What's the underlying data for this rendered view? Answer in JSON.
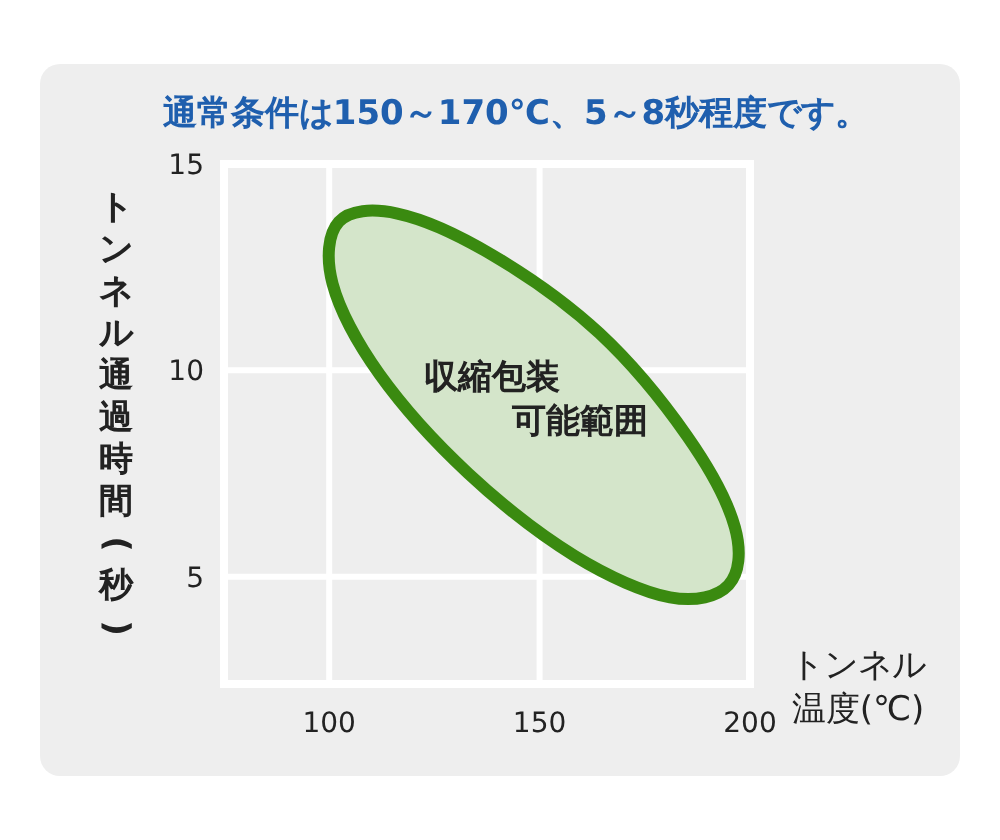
{
  "chart_data": {
    "type": "area",
    "title": "通常条件は150～170℃、5～8秒程度です。",
    "xlabel": "トンネル温度(℃)",
    "ylabel": "トンネル通過時間(秒)",
    "xlim": [
      75,
      200
    ],
    "ylim": [
      2.4,
      15
    ],
    "xticks": [
      100,
      150,
      200
    ],
    "yticks": [
      5,
      10,
      15
    ],
    "grid": true,
    "marker": "none",
    "line_style": "solid",
    "series": [
      {
        "color": "#3a8a10",
        "x": [
          194.9,
          181.0,
          158.4,
          133.1,
          112.0,
          100.8,
          102.3,
          116.2,
          138.7,
          164.2,
          185.1,
          196.4,
          194.9
        ],
        "values": [
          4.8,
          4.5,
          5.5,
          7.5,
          9.9,
          12.1,
          13.6,
          13.8,
          12.8,
          10.9,
          8.4,
          6.2,
          4.8
        ]
      }
    ],
    "annotations": [
      "収縮包装可能範囲"
    ]
  }
}
